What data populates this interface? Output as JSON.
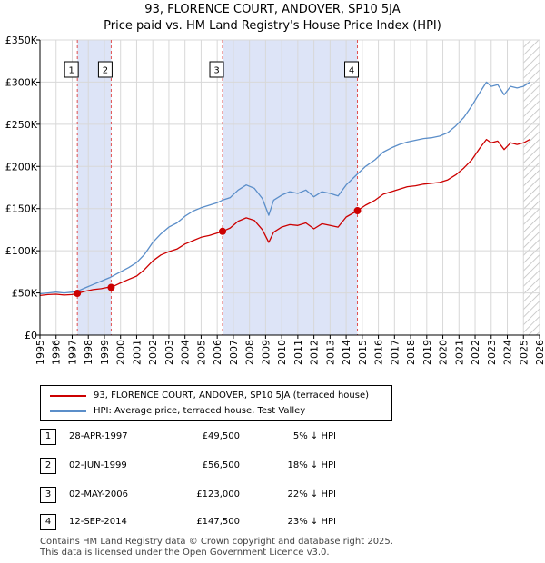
{
  "title_line1": "93, FLORENCE COURT, ANDOVER, SP10 5JA",
  "title_line2": "Price paid vs. HM Land Registry's House Price Index (HPI)",
  "colors": {
    "price_line": "#cc0000",
    "hpi_line": "#5b8ec9",
    "shade": "#dde4f7",
    "vline": "#e05050"
  },
  "chart_data": {
    "type": "line",
    "ylim": [
      0,
      350000
    ],
    "xlim": [
      1995,
      2026
    ],
    "y_ticks": [
      0,
      50000,
      100000,
      150000,
      200000,
      250000,
      300000,
      350000
    ],
    "y_tick_labels": [
      "£0",
      "£50K",
      "£100K",
      "£150K",
      "£200K",
      "£250K",
      "£300K",
      "£350K"
    ],
    "x_ticks": [
      1995,
      1996,
      1997,
      1998,
      1999,
      2000,
      2001,
      2002,
      2003,
      2004,
      2005,
      2006,
      2007,
      2008,
      2009,
      2010,
      2011,
      2012,
      2013,
      2014,
      2015,
      2016,
      2017,
      2018,
      2019,
      2020,
      2021,
      2022,
      2023,
      2024,
      2025,
      2026
    ],
    "shaded_ranges": [
      [
        1997.32,
        1999.42
      ],
      [
        2006.33,
        2014.7
      ]
    ],
    "future_hatch_from": 2025.0,
    "series": [
      {
        "name": "93, FLORENCE COURT, ANDOVER, SP10 5JA (terraced house)",
        "x": [
          1995.0,
          1995.5,
          1996.0,
          1996.5,
          1997.0,
          1997.32,
          1997.8,
          1998.3,
          1998.8,
          1999.3,
          1999.42,
          1999.9,
          2000.5,
          2001.0,
          2001.5,
          2002.0,
          2002.5,
          2003.0,
          2003.5,
          2004.0,
          2004.5,
          2005.0,
          2005.5,
          2006.0,
          2006.33,
          2006.8,
          2007.3,
          2007.8,
          2008.3,
          2008.8,
          2009.2,
          2009.5,
          2010.0,
          2010.5,
          2011.0,
          2011.5,
          2012.0,
          2012.5,
          2013.0,
          2013.5,
          2014.0,
          2014.7,
          2015.2,
          2015.8,
          2016.3,
          2016.8,
          2017.3,
          2017.8,
          2018.3,
          2018.8,
          2019.3,
          2019.8,
          2020.3,
          2020.8,
          2021.3,
          2021.8,
          2022.3,
          2022.7,
          2023.0,
          2023.4,
          2023.8,
          2024.2,
          2024.6,
          2025.0,
          2025.4
        ],
        "values": [
          47000,
          48000,
          48500,
          47500,
          48000,
          49500,
          52000,
          54000,
          55000,
          57000,
          56500,
          61000,
          66000,
          70000,
          78000,
          88000,
          95000,
          99000,
          102000,
          108000,
          112000,
          116000,
          118000,
          121000,
          123000,
          127000,
          135000,
          139000,
          136000,
          125000,
          110000,
          122000,
          128000,
          131000,
          130000,
          133000,
          126000,
          132000,
          130000,
          128000,
          140000,
          147500,
          154000,
          160000,
          167000,
          170000,
          173000,
          176000,
          177000,
          179000,
          180000,
          181000,
          184000,
          190000,
          198000,
          208000,
          222000,
          232000,
          228000,
          230000,
          220000,
          228000,
          226000,
          228000,
          232000
        ]
      },
      {
        "name": "HPI: Average price, terraced house, Test Valley",
        "x": [
          1995.0,
          1995.5,
          1996.0,
          1996.5,
          1997.0,
          1997.32,
          1997.8,
          1998.3,
          1998.8,
          1999.3,
          1999.42,
          1999.9,
          2000.5,
          2001.0,
          2001.5,
          2002.0,
          2002.5,
          2003.0,
          2003.5,
          2004.0,
          2004.5,
          2005.0,
          2005.5,
          2006.0,
          2006.33,
          2006.8,
          2007.3,
          2007.8,
          2008.3,
          2008.8,
          2009.2,
          2009.5,
          2010.0,
          2010.5,
          2011.0,
          2011.5,
          2012.0,
          2012.5,
          2013.0,
          2013.5,
          2014.0,
          2014.7,
          2015.2,
          2015.8,
          2016.3,
          2016.8,
          2017.3,
          2017.8,
          2018.3,
          2018.8,
          2019.3,
          2019.8,
          2020.3,
          2020.8,
          2021.3,
          2021.8,
          2022.3,
          2022.7,
          2023.0,
          2023.4,
          2023.8,
          2024.2,
          2024.6,
          2025.0,
          2025.4
        ],
        "values": [
          49000,
          50000,
          51000,
          50000,
          51000,
          52000,
          56000,
          60000,
          64000,
          68000,
          69000,
          74000,
          80000,
          86000,
          96000,
          110000,
          120000,
          128000,
          133000,
          141000,
          147000,
          151000,
          154000,
          157000,
          160000,
          163000,
          172000,
          178000,
          174000,
          162000,
          142000,
          160000,
          166000,
          170000,
          168000,
          172000,
          164000,
          170000,
          168000,
          165000,
          178000,
          191000,
          200000,
          208000,
          217000,
          222000,
          226000,
          229000,
          231000,
          233000,
          234000,
          236000,
          240000,
          248000,
          258000,
          272000,
          288000,
          300000,
          295000,
          297000,
          285000,
          295000,
          293000,
          295000,
          300000
        ]
      }
    ],
    "sale_markers": [
      {
        "label": "1",
        "x": 1997.32,
        "value": 49500
      },
      {
        "label": "2",
        "x": 1999.42,
        "value": 56500
      },
      {
        "label": "3",
        "x": 2006.33,
        "value": 123000
      },
      {
        "label": "4",
        "x": 2014.7,
        "value": 147500
      }
    ]
  },
  "legend": {
    "price_label": "93, FLORENCE COURT, ANDOVER, SP10 5JA (terraced house)",
    "hpi_label": "HPI: Average price, terraced house, Test Valley"
  },
  "sales": [
    {
      "num": "1",
      "date": "28-APR-1997",
      "price": "£49,500",
      "hpi": "5% ↓ HPI"
    },
    {
      "num": "2",
      "date": "02-JUN-1999",
      "price": "£56,500",
      "hpi": "18% ↓ HPI"
    },
    {
      "num": "3",
      "date": "02-MAY-2006",
      "price": "£123,000",
      "hpi": "22% ↓ HPI"
    },
    {
      "num": "4",
      "date": "12-SEP-2014",
      "price": "£147,500",
      "hpi": "23% ↓ HPI"
    }
  ],
  "footer_line1": "Contains HM Land Registry data © Crown copyright and database right 2025.",
  "footer_line2": "This data is licensed under the Open Government Licence v3.0."
}
